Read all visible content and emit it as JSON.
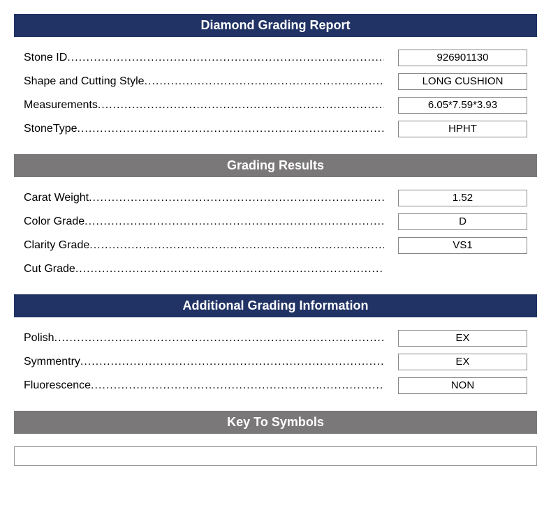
{
  "colors": {
    "navy": "#213364",
    "gray": "#7a7879",
    "headerText": "#ffffff",
    "bodyText": "#000000",
    "boxBorder": "#888888"
  },
  "sections": {
    "main": {
      "title": "Diamond Grading Report",
      "rows": [
        {
          "label": "Stone ID",
          "value": "926901130"
        },
        {
          "label": "Shape and Cutting Style",
          "value": "LONG CUSHION"
        },
        {
          "label": "Measurements",
          "value": "6.05*7.59*3.93"
        },
        {
          "label": "StoneType",
          "value": "HPHT"
        }
      ]
    },
    "grading": {
      "title": "Grading Results",
      "rows": [
        {
          "label": "Carat Weight",
          "value": "1.52"
        },
        {
          "label": "Color Grade",
          "value": "D"
        },
        {
          "label": "Clarity Grade",
          "value": "VS1"
        },
        {
          "label": "Cut Grade",
          "value": ""
        }
      ]
    },
    "additional": {
      "title": "Additional Grading Information",
      "rows": [
        {
          "label": "Polish",
          "value": "EX"
        },
        {
          "label": "Symmentry",
          "value": "EX"
        },
        {
          "label": "Fluorescence",
          "value": "NON"
        }
      ]
    },
    "symbols": {
      "title": "Key To Symbols"
    }
  },
  "dotsFill": "......................................................................................................................................................"
}
